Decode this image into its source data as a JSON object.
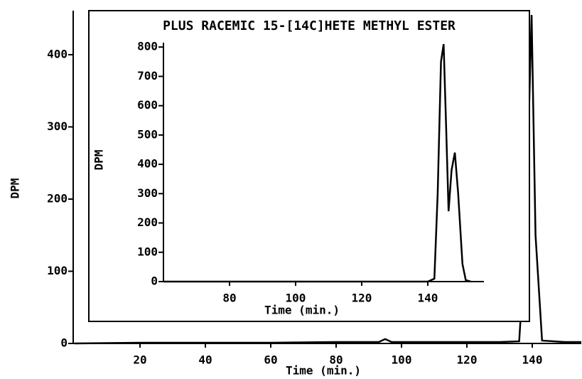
{
  "chart_data": [
    {
      "type": "line",
      "x_label": "Time (min.)",
      "y_label": "DPM",
      "xlim": [
        0,
        155
      ],
      "ylim": [
        0,
        461
      ],
      "xticks": [
        20,
        40,
        60,
        80,
        100,
        120,
        140
      ],
      "yticks": [
        0,
        100,
        200,
        300,
        400
      ],
      "x": [
        0,
        20,
        40,
        60,
        80,
        93,
        95,
        97,
        110,
        130,
        136,
        138,
        139.8,
        141,
        143,
        150,
        155
      ],
      "series": [
        {
          "name": "DPM",
          "color": "#000000",
          "values": [
            0,
            1,
            1,
            1,
            2,
            2,
            6,
            2,
            2,
            2,
            3,
            150,
            455,
            150,
            4,
            2,
            2
          ]
        }
      ]
    },
    {
      "type": "line",
      "title": "PLUS RACEMIC 15-[14C]HETE METHYL ESTER",
      "x_label": "Time (min.)",
      "y_label": "DPM",
      "xlim": [
        60,
        157
      ],
      "ylim": [
        0,
        815
      ],
      "xticks": [
        80,
        100,
        120,
        140
      ],
      "yticks": [
        0,
        100,
        200,
        300,
        400,
        500,
        600,
        700,
        800
      ],
      "x": [
        60,
        80,
        100,
        120,
        140,
        142,
        143,
        144,
        144.8,
        145.5,
        146.3,
        147.2,
        148.2,
        149.2,
        150.5,
        151.5,
        153
      ],
      "series": [
        {
          "name": "DPM",
          "color": "#000000",
          "values": [
            0,
            0,
            0,
            0,
            0,
            10,
            300,
            750,
            810,
            550,
            240,
            380,
            440,
            300,
            60,
            5,
            0
          ]
        }
      ]
    }
  ]
}
